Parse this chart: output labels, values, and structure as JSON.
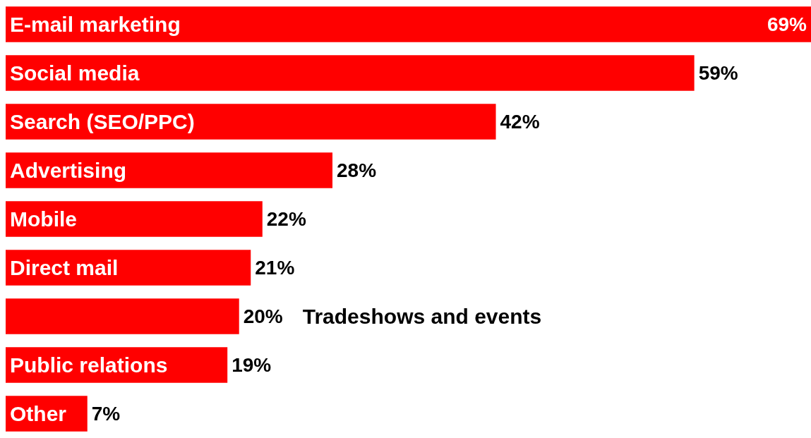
{
  "chart_data": {
    "type": "bar",
    "orientation": "horizontal",
    "categories": [
      "E-mail marketing",
      "Social media",
      "Search (SEO/PPC)",
      "Advertising",
      "Mobile",
      "Direct mail",
      "Tradeshows and events",
      "Public relations",
      "Other"
    ],
    "values": [
      69,
      59,
      42,
      28,
      22,
      21,
      20,
      19,
      7
    ],
    "value_labels": [
      "69%",
      "59%",
      "42%",
      "28%",
      "22%",
      "21%",
      "20%",
      "19%",
      "7%"
    ],
    "color": "#ff0000"
  }
}
